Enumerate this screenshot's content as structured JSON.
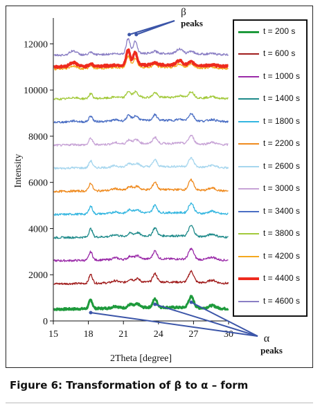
{
  "caption": "Figure 6: Transformation of β to α – form",
  "chart_data": {
    "type": "line",
    "xlabel": "2Theta [degree]",
    "ylabel": "Intensity",
    "xlim": [
      15,
      30
    ],
    "ylim": [
      0,
      13000
    ],
    "xticks": [
      15,
      18,
      21,
      24,
      27,
      30
    ],
    "yticks": [
      0,
      2000,
      4000,
      6000,
      8000,
      10000,
      12000
    ],
    "legend_position": "right",
    "annotations": [
      {
        "text_top": "β",
        "text_bottom": "peaks",
        "points_to_x": [
          21.5,
          22.1
        ]
      },
      {
        "text_top": "α",
        "text_bottom": "peaks",
        "points_to_x": [
          18.2,
          23.7,
          26.8
        ]
      }
    ],
    "peaks": {
      "alpha": [
        18.2,
        21.6,
        22.2,
        23.7,
        26.8,
        28.6
      ],
      "beta": [
        21.4,
        22.0
      ]
    },
    "series": [
      {
        "name": "t = 200 s",
        "baseline": 500,
        "color": "#1e9a3c",
        "width": 3,
        "alpha": 1.0,
        "beta": 0.0
      },
      {
        "name": "t = 600 s",
        "baseline": 1600,
        "color": "#a01c1c",
        "width": 1.3,
        "alpha": 1.0,
        "beta": 0.0
      },
      {
        "name": "t = 1000 s",
        "baseline": 2600,
        "color": "#9a2aa8",
        "width": 1.3,
        "alpha": 0.95,
        "beta": 0.0
      },
      {
        "name": "t = 1400 s",
        "baseline": 3600,
        "color": "#1e8a8a",
        "width": 1.3,
        "alpha": 0.95,
        "beta": 0.0
      },
      {
        "name": "t = 1800 s",
        "baseline": 4600,
        "color": "#33b6e0",
        "width": 1.3,
        "alpha": 0.9,
        "beta": 0.05
      },
      {
        "name": "t = 2200 s",
        "baseline": 5600,
        "color": "#ef8a1e",
        "width": 1.3,
        "alpha": 0.9,
        "beta": 0.05
      },
      {
        "name": "t = 2600 s",
        "baseline": 6600,
        "color": "#a6d6ee",
        "width": 1.3,
        "alpha": 0.8,
        "beta": 0.1
      },
      {
        "name": "t = 3000 s",
        "baseline": 7600,
        "color": "#c7a3d6",
        "width": 1.3,
        "alpha": 0.75,
        "beta": 0.15
      },
      {
        "name": "t = 3400 s",
        "baseline": 8600,
        "color": "#4a6ec4",
        "width": 1.3,
        "alpha": 0.65,
        "beta": 0.25
      },
      {
        "name": "t = 3800 s",
        "baseline": 9600,
        "color": "#a2c93a",
        "width": 1.3,
        "alpha": 0.55,
        "beta": 0.35
      },
      {
        "name": "t = 4200 s",
        "baseline": 10900,
        "color": "#f4a81e",
        "width": 1.3,
        "alpha": 0.35,
        "beta": 0.7
      },
      {
        "name": "t = 4400 s",
        "baseline": 11000,
        "color": "#ee2a1e",
        "width": 3.5,
        "alpha": 0.3,
        "beta": 1.0
      },
      {
        "name": "t = 4600 s",
        "baseline": 11500,
        "color": "#8a7ec4",
        "width": 1.3,
        "alpha": 0.25,
        "beta": 1.0
      }
    ]
  }
}
